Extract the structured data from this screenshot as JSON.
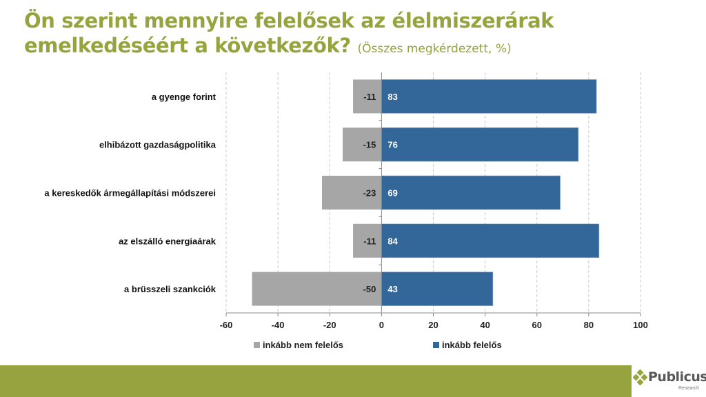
{
  "title": {
    "main": "Ön szerint mennyire felelősek az élelmiszerárak emelkedéséért a következők?",
    "sub": "(Összes megkérdezett, %)"
  },
  "chart_data": {
    "type": "bar",
    "orientation": "horizontal",
    "stacked": "diverging",
    "categories": [
      "a gyenge forint",
      "elhibázott gazdaságpolitika",
      "a kereskedők ármegállapítási módszerei",
      "az elszálló energiaárak",
      "a brüsszeli szankciók"
    ],
    "series": [
      {
        "name": "inkább nem felelős",
        "values": [
          -11,
          -15,
          -23,
          -11,
          -50
        ],
        "color": "#a6a6a6"
      },
      {
        "name": "inkább felelős",
        "values": [
          83,
          76,
          69,
          84,
          43
        ],
        "color": "#336699"
      }
    ],
    "xlim": [
      -60,
      100
    ],
    "xticks": [
      -60,
      -40,
      -20,
      0,
      20,
      40,
      60,
      80,
      100
    ],
    "grid": true,
    "legend": "bottom"
  },
  "logo": {
    "name": "Publicus",
    "sub": "Research"
  },
  "colors": {
    "accent": "#96a33e",
    "footer": "#97a33f"
  }
}
